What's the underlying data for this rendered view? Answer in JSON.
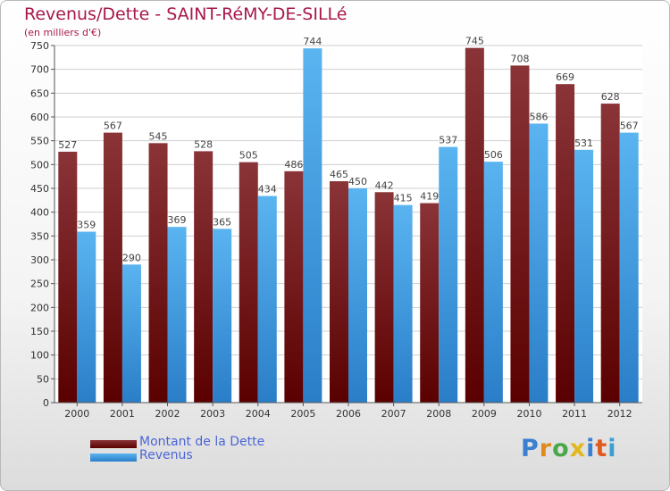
{
  "chart_data": {
    "type": "bar",
    "title": "Revenus/Dette - SAINT-RéMY-DE-SILLé",
    "subtitle": "(en milliers d'€)",
    "categories": [
      "2000",
      "2001",
      "2002",
      "2003",
      "2004",
      "2005",
      "2006",
      "2007",
      "2008",
      "2009",
      "2010",
      "2011",
      "2012"
    ],
    "series": [
      {
        "name": "Montant de la Dette",
        "color": "#7a1e22",
        "values": [
          527,
          567,
          545,
          528,
          505,
          486,
          465,
          442,
          419,
          745,
          708,
          669,
          628
        ]
      },
      {
        "name": "Revenus",
        "color": "#3a9ee0",
        "values": [
          359,
          290,
          369,
          365,
          434,
          744,
          450,
          415,
          537,
          506,
          586,
          531,
          567
        ]
      }
    ],
    "ylim": [
      0,
      750
    ],
    "yticks": [
      0,
      50,
      100,
      150,
      200,
      250,
      300,
      350,
      400,
      450,
      500,
      550,
      600,
      650,
      700,
      750
    ],
    "grid": true,
    "legend_position": "bottom-left"
  },
  "logo": {
    "letters": [
      "P",
      "r",
      "o",
      "x",
      "i",
      "t",
      "i"
    ],
    "colors": [
      "#3a7fd0",
      "#e08a1e",
      "#4aa84a",
      "#e0b81e",
      "#3a7fd0",
      "#e05a1e",
      "#3aa0d0"
    ]
  }
}
